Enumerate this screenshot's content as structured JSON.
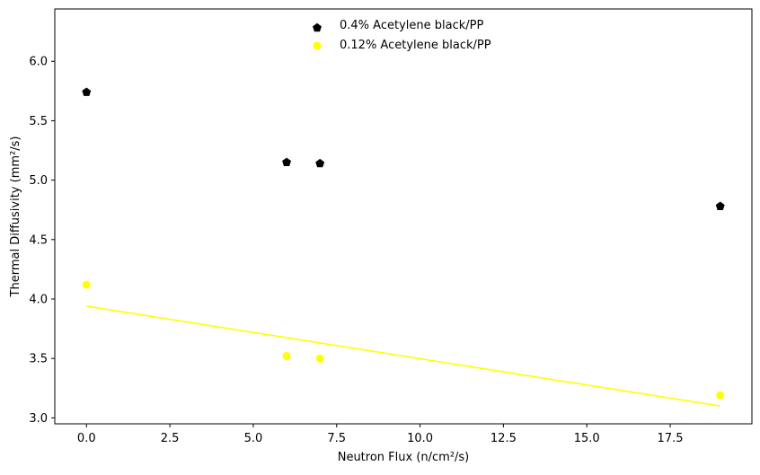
{
  "chart_data": {
    "type": "scatter",
    "title": "",
    "xlabel": "Neutron Flux (n/cm²/s)",
    "ylabel": "Thermal Diffusivity (mm²/s)",
    "xlim": [
      -0.95,
      19.95
    ],
    "ylim": [
      2.95,
      6.44
    ],
    "xticks": [
      0.0,
      2.5,
      5.0,
      7.5,
      10.0,
      12.5,
      15.0,
      17.5
    ],
    "xtick_labels": [
      "0.0",
      "2.5",
      "5.0",
      "7.5",
      "10.0",
      "12.5",
      "15.0",
      "17.5"
    ],
    "yticks": [
      3.0,
      3.5,
      4.0,
      4.5,
      5.0,
      5.5,
      6.0
    ],
    "ytick_labels": [
      "3.0",
      "3.5",
      "4.0",
      "4.5",
      "5.0",
      "5.5",
      "6.0"
    ],
    "grid": false,
    "legend_position": "top-center",
    "series": [
      {
        "name": "0.4% Acetylene black/PP",
        "marker": "pentagon",
        "color": "#000000",
        "x": [
          0,
          6,
          7,
          19
        ],
        "y": [
          5.74,
          5.15,
          5.14,
          4.78
        ]
      },
      {
        "name": "0.12% Acetylene black/PP",
        "marker": "circle",
        "color": "#ffff00",
        "x": [
          0,
          6,
          7,
          19
        ],
        "y": [
          4.12,
          3.52,
          3.5,
          3.19
        ]
      }
    ],
    "lines": [
      {
        "color": "#ffff00",
        "x": [
          0,
          19
        ],
        "y": [
          3.94,
          3.1
        ]
      }
    ]
  }
}
